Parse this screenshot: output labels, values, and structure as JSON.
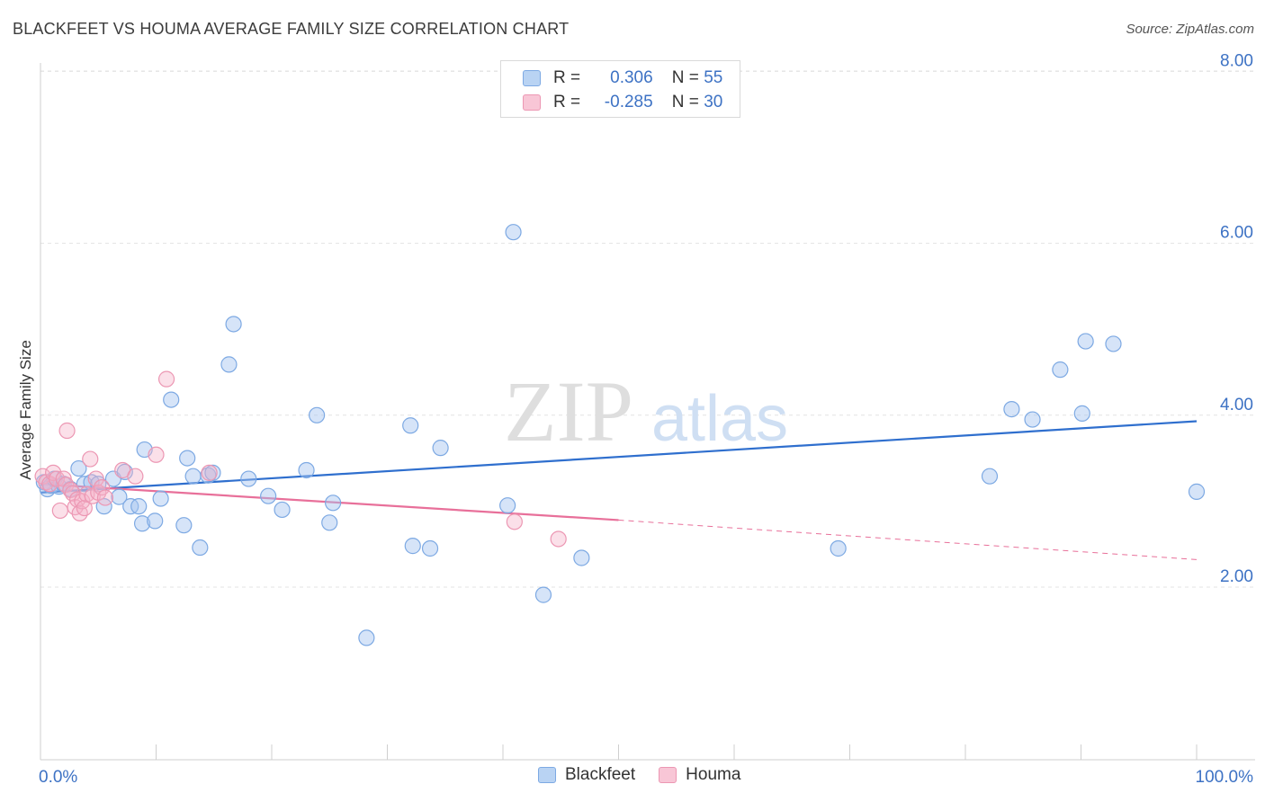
{
  "title": "BLACKFEET VS HOUMA AVERAGE FAMILY SIZE CORRELATION CHART",
  "source": "Source: ZipAtlas.com",
  "watermark": {
    "zip": "ZIP",
    "atlas": "atlas"
  },
  "legend": {
    "rows": [
      {
        "r_label": "R =",
        "r_value": "0.306",
        "n_label": "N =",
        "n_value": "55"
      },
      {
        "r_label": "R =",
        "r_value": "-0.285",
        "n_label": "N =",
        "n_value": "30"
      }
    ]
  },
  "bottom_legend": [
    {
      "label": "Blackfeet"
    },
    {
      "label": "Houma"
    }
  ],
  "colors": {
    "blue": "#3d72c4",
    "blue_line": "#2f6fce",
    "pink_line": "#e8709a"
  },
  "chart_data": {
    "type": "scatter",
    "title": "BLACKFEET VS HOUMA AVERAGE FAMILY SIZE CORRELATION CHART",
    "xlabel": "",
    "ylabel": "Average Family Size",
    "xlim": [
      0,
      100
    ],
    "ylim": [
      0.2,
      8.2
    ],
    "x_tick_labels": [
      "0.0%",
      "100.0%"
    ],
    "y_ticks": [
      2,
      4,
      6,
      8
    ],
    "y_tick_labels": [
      "2.00",
      "4.00",
      "6.00",
      "8.00"
    ],
    "series": [
      {
        "name": "Blackfeet",
        "color": "#7da9e3",
        "points": [
          [
            0.3,
            3.22
          ],
          [
            0.6,
            3.14
          ],
          [
            0.9,
            3.18
          ],
          [
            1.2,
            3.26
          ],
          [
            1.6,
            3.17
          ],
          [
            2.0,
            3.2
          ],
          [
            2.6,
            3.14
          ],
          [
            3.3,
            3.38
          ],
          [
            3.8,
            3.2
          ],
          [
            4.4,
            3.22
          ],
          [
            5.0,
            3.2
          ],
          [
            5.5,
            2.94
          ],
          [
            6.3,
            3.26
          ],
          [
            6.8,
            3.05
          ],
          [
            7.3,
            3.34
          ],
          [
            7.8,
            2.94
          ],
          [
            8.5,
            2.94
          ],
          [
            8.8,
            2.74
          ],
          [
            9.0,
            3.6
          ],
          [
            9.9,
            2.77
          ],
          [
            10.4,
            3.03
          ],
          [
            11.3,
            4.18
          ],
          [
            12.4,
            2.72
          ],
          [
            12.7,
            3.5
          ],
          [
            13.2,
            3.29
          ],
          [
            13.8,
            2.46
          ],
          [
            14.5,
            3.3
          ],
          [
            14.9,
            3.33
          ],
          [
            16.3,
            4.59
          ],
          [
            16.7,
            5.06
          ],
          [
            18.0,
            3.26
          ],
          [
            19.7,
            3.06
          ],
          [
            20.9,
            2.9
          ],
          [
            23.0,
            3.36
          ],
          [
            23.9,
            4.0
          ],
          [
            25.0,
            2.75
          ],
          [
            25.3,
            2.98
          ],
          [
            28.2,
            1.41
          ],
          [
            32.0,
            3.88
          ],
          [
            32.2,
            2.48
          ],
          [
            33.7,
            2.45
          ],
          [
            34.6,
            3.62
          ],
          [
            40.4,
            2.95
          ],
          [
            40.9,
            6.13
          ],
          [
            43.5,
            1.91
          ],
          [
            46.8,
            2.34
          ],
          [
            69.0,
            2.45
          ],
          [
            82.1,
            3.29
          ],
          [
            84.0,
            4.07
          ],
          [
            85.8,
            3.95
          ],
          [
            88.2,
            4.53
          ],
          [
            90.1,
            4.02
          ],
          [
            90.4,
            4.86
          ],
          [
            92.8,
            4.83
          ],
          [
            100.0,
            3.11
          ]
        ]
      },
      {
        "name": "Houma",
        "color": "#ec97b3",
        "points": [
          [
            0.2,
            3.29
          ],
          [
            0.5,
            3.22
          ],
          [
            0.8,
            3.2
          ],
          [
            1.1,
            3.33
          ],
          [
            1.4,
            3.26
          ],
          [
            1.7,
            2.89
          ],
          [
            2.0,
            3.26
          ],
          [
            2.2,
            3.19
          ],
          [
            2.3,
            3.82
          ],
          [
            2.6,
            3.13
          ],
          [
            2.8,
            3.09
          ],
          [
            3.0,
            2.93
          ],
          [
            3.2,
            3.02
          ],
          [
            3.4,
            2.86
          ],
          [
            3.6,
            3.0
          ],
          [
            3.8,
            2.92
          ],
          [
            4.0,
            3.08
          ],
          [
            4.3,
            3.49
          ],
          [
            4.5,
            3.06
          ],
          [
            4.8,
            3.26
          ],
          [
            5.0,
            3.1
          ],
          [
            5.3,
            3.16
          ],
          [
            5.6,
            3.04
          ],
          [
            7.1,
            3.36
          ],
          [
            8.2,
            3.29
          ],
          [
            10.0,
            3.54
          ],
          [
            10.9,
            4.42
          ],
          [
            14.6,
            3.33
          ],
          [
            41.0,
            2.76
          ],
          [
            44.8,
            2.56
          ]
        ]
      }
    ],
    "trend_lines": [
      {
        "name": "Blackfeet",
        "x": [
          0,
          100
        ],
        "y": [
          3.1,
          3.93
        ],
        "style": "solid"
      },
      {
        "name": "Houma",
        "x": [
          0,
          50
        ],
        "y": [
          3.2,
          2.78
        ],
        "style": "solid"
      },
      {
        "name": "Houma",
        "x": [
          50,
          100
        ],
        "y": [
          2.78,
          2.32
        ],
        "style": "dashed"
      }
    ],
    "grid": true,
    "legend_position": "top-center"
  }
}
